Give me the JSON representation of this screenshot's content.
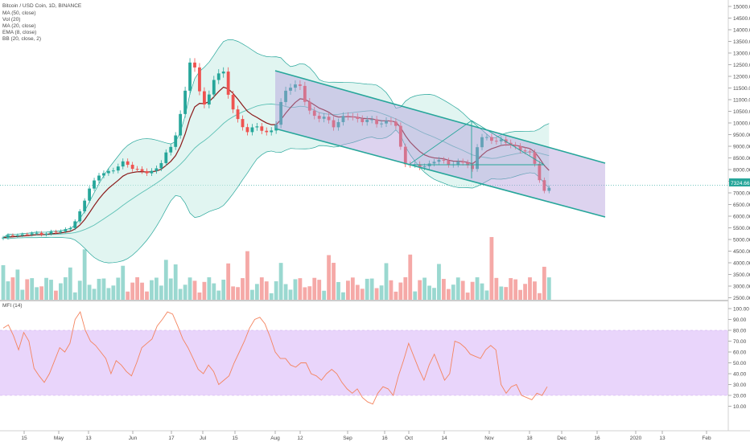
{
  "header": {
    "symbol_line": "Bitcoin / USD Coin, 1D, BINANCE",
    "indicators": [
      "MA (50, close)",
      "Vol (20)",
      "MA (20, close)",
      "EMA (8, close)",
      "BB (20, close, 2)"
    ]
  },
  "mfi_label": "MFI (14)",
  "price_badge": "7324.66",
  "colors": {
    "up": "#26a69a",
    "down": "#ef5350",
    "channel": "#26a69a",
    "channel_fill": "#b39ddb",
    "mfi_line": "#f4845f",
    "mfi_band": "#e9d5fb",
    "ema": "#8b1a1a",
    "bb": "#26a69a"
  },
  "chart_data": [
    {
      "type": "candlestick",
      "title": "Bitcoin / USD Coin, 1D, BINANCE",
      "y_ticks": [
        "15000.00",
        "14500.00",
        "14000.00",
        "13500.00",
        "13000.00",
        "12500.00",
        "12000.00",
        "11500.00",
        "11000.00",
        "10500.00",
        "10000.00",
        "9500.00",
        "9000.00",
        "8500.00",
        "8000.00",
        "7500.00",
        "7000.00",
        "6500.00",
        "6000.00",
        "5500.00",
        "5000.00",
        "4500.00",
        "4000.00",
        "3500.00",
        "3000.00",
        "2500.00"
      ],
      "ylim": [
        2300,
        15300
      ],
      "x_ticks": [
        "15",
        "May",
        "13",
        "Jun",
        "17",
        "Jul",
        "15",
        "Aug",
        "12",
        "Sep",
        "16",
        "Oct",
        "14",
        "Nov",
        "18",
        "Dec",
        "16",
        "2020",
        "13",
        "Feb"
      ],
      "last_price": 7324.66,
      "series": [
        {
          "name": "Price",
          "description": "daily candles (approximate shape)"
        },
        {
          "name": "EMA (8, close)"
        },
        {
          "name": "MA (20, close)"
        },
        {
          "name": "BB (20, close, 2)"
        },
        {
          "name": "Vol (20)"
        }
      ],
      "annotations": [
        "descending parallel channel",
        "triangle pattern"
      ]
    },
    {
      "type": "line",
      "title": "MFI (14)",
      "y_ticks": [
        "100.00",
        "90.00",
        "80.00",
        "70.00",
        "60.00",
        "50.00",
        "40.00",
        "30.00",
        "20.00",
        "10.00"
      ],
      "ylim": [
        5,
        102
      ],
      "band": [
        20,
        80
      ],
      "values": [
        82,
        85,
        75,
        62,
        78,
        70,
        45,
        38,
        32,
        40,
        52,
        64,
        60,
        68,
        90,
        97,
        80,
        70,
        66,
        60,
        54,
        40,
        52,
        48,
        42,
        38,
        50,
        64,
        68,
        72,
        84,
        90,
        97,
        95,
        84,
        72,
        64,
        54,
        44,
        40,
        48,
        42,
        30,
        34,
        38,
        50,
        60,
        70,
        82,
        90,
        92,
        86,
        74,
        60,
        54,
        54,
        48,
        46,
        50,
        50,
        40,
        38,
        34,
        40,
        44,
        40,
        32,
        26,
        22,
        26,
        18,
        14,
        12,
        22,
        28,
        26,
        20,
        38,
        52,
        68,
        56,
        44,
        34,
        48,
        58,
        46,
        34,
        40,
        70,
        68,
        64,
        58,
        56,
        54,
        62,
        66,
        62,
        30,
        22,
        28,
        30,
        20,
        18,
        16,
        22,
        20,
        28
      ]
    }
  ]
}
